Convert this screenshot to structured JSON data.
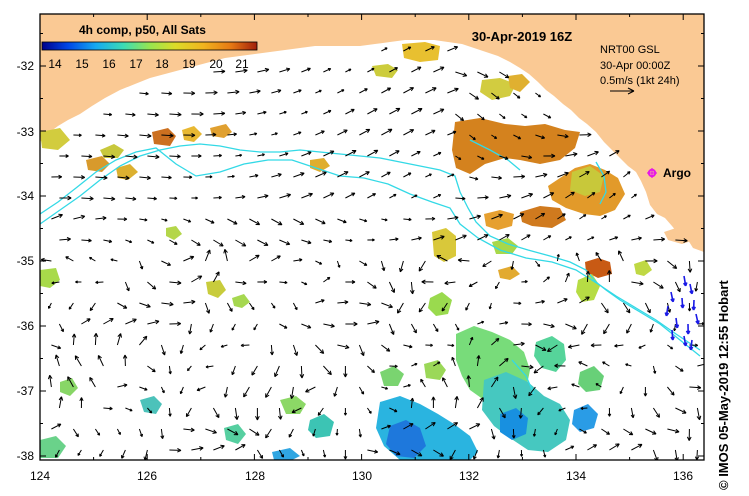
{
  "title": "30-Apr-2019 16Z",
  "colorbar": {
    "label": "4h comp, p50, All Sats",
    "ticks": [
      "14",
      "15",
      "16",
      "17",
      "18",
      "19",
      "20",
      "21"
    ]
  },
  "info": {
    "line1": "NRT00 GSL",
    "line2": "30-Apr 00:00Z",
    "line3": "0.5m/s (1kt 24h)"
  },
  "argo": {
    "label": "Argo"
  },
  "credit": "© IMOS 05-May-2019 12:55 Hobart",
  "axes": {
    "lat_labels": [
      "-32",
      "-33",
      "-34",
      "-35",
      "-36",
      "-37",
      "-38"
    ],
    "lon_labels": [
      "124",
      "126",
      "128",
      "130",
      "132",
      "134",
      "136"
    ]
  },
  "colors": {
    "land": "#fac994",
    "current_vectors": "#000000",
    "argo_vectors": "#1a1ae6",
    "contour": "#33d9e6",
    "argo_marker": "#e619e6"
  }
}
